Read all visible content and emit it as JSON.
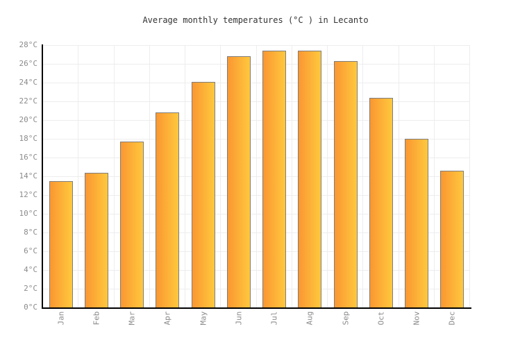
{
  "chart_data": {
    "type": "bar",
    "title": "Average monthly temperatures (°C ) in Lecanto",
    "categories": [
      "Jan",
      "Feb",
      "Mar",
      "Apr",
      "May",
      "Jun",
      "Jul",
      "Aug",
      "Sep",
      "Oct",
      "Nov",
      "Dec"
    ],
    "values": [
      13.5,
      14.4,
      17.7,
      20.8,
      24.1,
      26.8,
      27.4,
      27.4,
      26.3,
      22.4,
      18.0,
      14.6
    ],
    "xlabel": "",
    "ylabel": "",
    "ylim": [
      0,
      28
    ],
    "ytick_step": 2,
    "ytick_labels": [
      "0°C",
      "2°C",
      "4°C",
      "6°C",
      "8°C",
      "10°C",
      "12°C",
      "14°C",
      "16°C",
      "18°C",
      "20°C",
      "22°C",
      "24°C",
      "26°C",
      "28°C"
    ],
    "grid": true,
    "legend": false,
    "x_label_rotation": -90
  },
  "colors": {
    "background": "#FFFFFF",
    "title": "#333333",
    "tick_label": "#8B8B8B",
    "axis": "#000000",
    "grid": "#EDEDEF",
    "bar_gradient_left": "#FA9732",
    "bar_gradient_right": "#FFC83D",
    "bar_border": "#7D7D7D"
  }
}
